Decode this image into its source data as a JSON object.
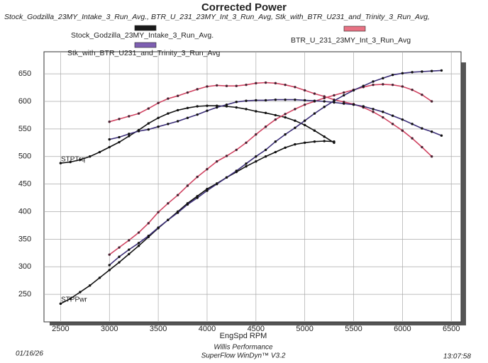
{
  "chart_data": {
    "type": "line",
    "title": "Corrected Power",
    "subtitle": "Stock_Godzilla_23MY_Intake_3_Run_Avg., BTR_U_231_23MY_Int_3_Run_Avg, Stk_with_BTR_U231_and_Trinity_3_Run_Avg,",
    "x_label": "EngSpd RPM",
    "torque_label": "STPTrq",
    "power_label": "STPPwr",
    "xlim": [
      2330,
      6600
    ],
    "xticks": [
      2500,
      3000,
      3500,
      4000,
      4500,
      5000,
      5500,
      6000,
      6500
    ],
    "ylim": [
      200,
      690
    ],
    "yticks": [
      250,
      300,
      350,
      400,
      450,
      500,
      550,
      600,
      650
    ],
    "grid": true,
    "series": [
      {
        "name": "Stock_Godzilla_23MY_Intake_3_Run_Avg.",
        "color": "#111111",
        "x": [
          2500,
          2600,
          2700,
          2800,
          2900,
          3000,
          3100,
          3200,
          3300,
          3400,
          3500,
          3600,
          3700,
          3800,
          3900,
          4000,
          4100,
          4200,
          4300,
          4400,
          4500,
          4600,
          4700,
          4800,
          4900,
          5000,
          5100,
          5200,
          5300
        ],
        "torque": [
          488,
          490,
          494,
          500,
          508,
          517,
          526,
          537,
          548,
          560,
          570,
          578,
          584,
          588,
          591,
          592,
          592,
          591,
          589,
          586,
          582,
          579,
          575,
          571,
          565,
          557,
          547,
          536,
          525
        ],
        "power": [
          233,
          242,
          254,
          266,
          280,
          294,
          308,
          323,
          338,
          354,
          370,
          385,
          400,
          415,
          428,
          441,
          451,
          462,
          472,
          482,
          491,
          500,
          508,
          516,
          522,
          525,
          527,
          528,
          527
        ]
      },
      {
        "name": "BTR_U_231_23MY_Int_3_Run_Avg",
        "color": "#d04462",
        "x": [
          3000,
          3100,
          3200,
          3300,
          3400,
          3500,
          3600,
          3700,
          3800,
          3900,
          4000,
          4100,
          4200,
          4300,
          4400,
          4500,
          4600,
          4700,
          4800,
          4900,
          5000,
          5100,
          5200,
          5300,
          5400,
          5500,
          5600,
          5700,
          5800,
          5900,
          6000,
          6100,
          6200,
          6300
        ],
        "torque": [
          563,
          568,
          573,
          578,
          587,
          597,
          605,
          610,
          616,
          622,
          627,
          629,
          628,
          628,
          630,
          633,
          634,
          633,
          630,
          626,
          620,
          614,
          609,
          603,
          599,
          595,
          589,
          581,
          571,
          559,
          547,
          533,
          517,
          500
        ],
        "power": [
          322,
          335,
          348,
          362,
          379,
          399,
          415,
          430,
          447,
          463,
          477,
          491,
          501,
          512,
          525,
          540,
          554,
          567,
          577,
          586,
          594,
          600,
          606,
          611,
          616,
          621,
          626,
          630,
          631,
          630,
          627,
          621,
          612,
          600
        ]
      },
      {
        "name": "Stk_with_BTR_U231_and_Trinity_3_Run_Avg",
        "color": "#3c2f78",
        "x": [
          3000,
          3100,
          3200,
          3300,
          3400,
          3500,
          3600,
          3700,
          3800,
          3900,
          4000,
          4100,
          4200,
          4300,
          4400,
          4500,
          4600,
          4700,
          4800,
          4900,
          5000,
          5100,
          5200,
          5300,
          5400,
          5500,
          5600,
          5700,
          5800,
          5900,
          6000,
          6100,
          6200,
          6300,
          6400
        ],
        "torque": [
          531,
          535,
          541,
          546,
          549,
          554,
          559,
          564,
          570,
          576,
          583,
          589,
          594,
          599,
          601,
          602,
          602,
          603,
          603,
          603,
          602,
          601,
          600,
          598,
          596,
          594,
          591,
          586,
          581,
          574,
          567,
          559,
          551,
          545,
          538
        ],
        "power": [
          303,
          318,
          331,
          343,
          356,
          371,
          385,
          398,
          413,
          425,
          438,
          450,
          462,
          474,
          487,
          500,
          512,
          527,
          540,
          552,
          565,
          578,
          590,
          601,
          611,
          620,
          628,
          636,
          642,
          648,
          651,
          653,
          654,
          655,
          656
        ]
      }
    ]
  },
  "footer": {
    "date": "01/16/26",
    "company": "Willis Performance",
    "software": "SuperFlow WinDyn™ V3.2",
    "time": "13:07:58"
  }
}
